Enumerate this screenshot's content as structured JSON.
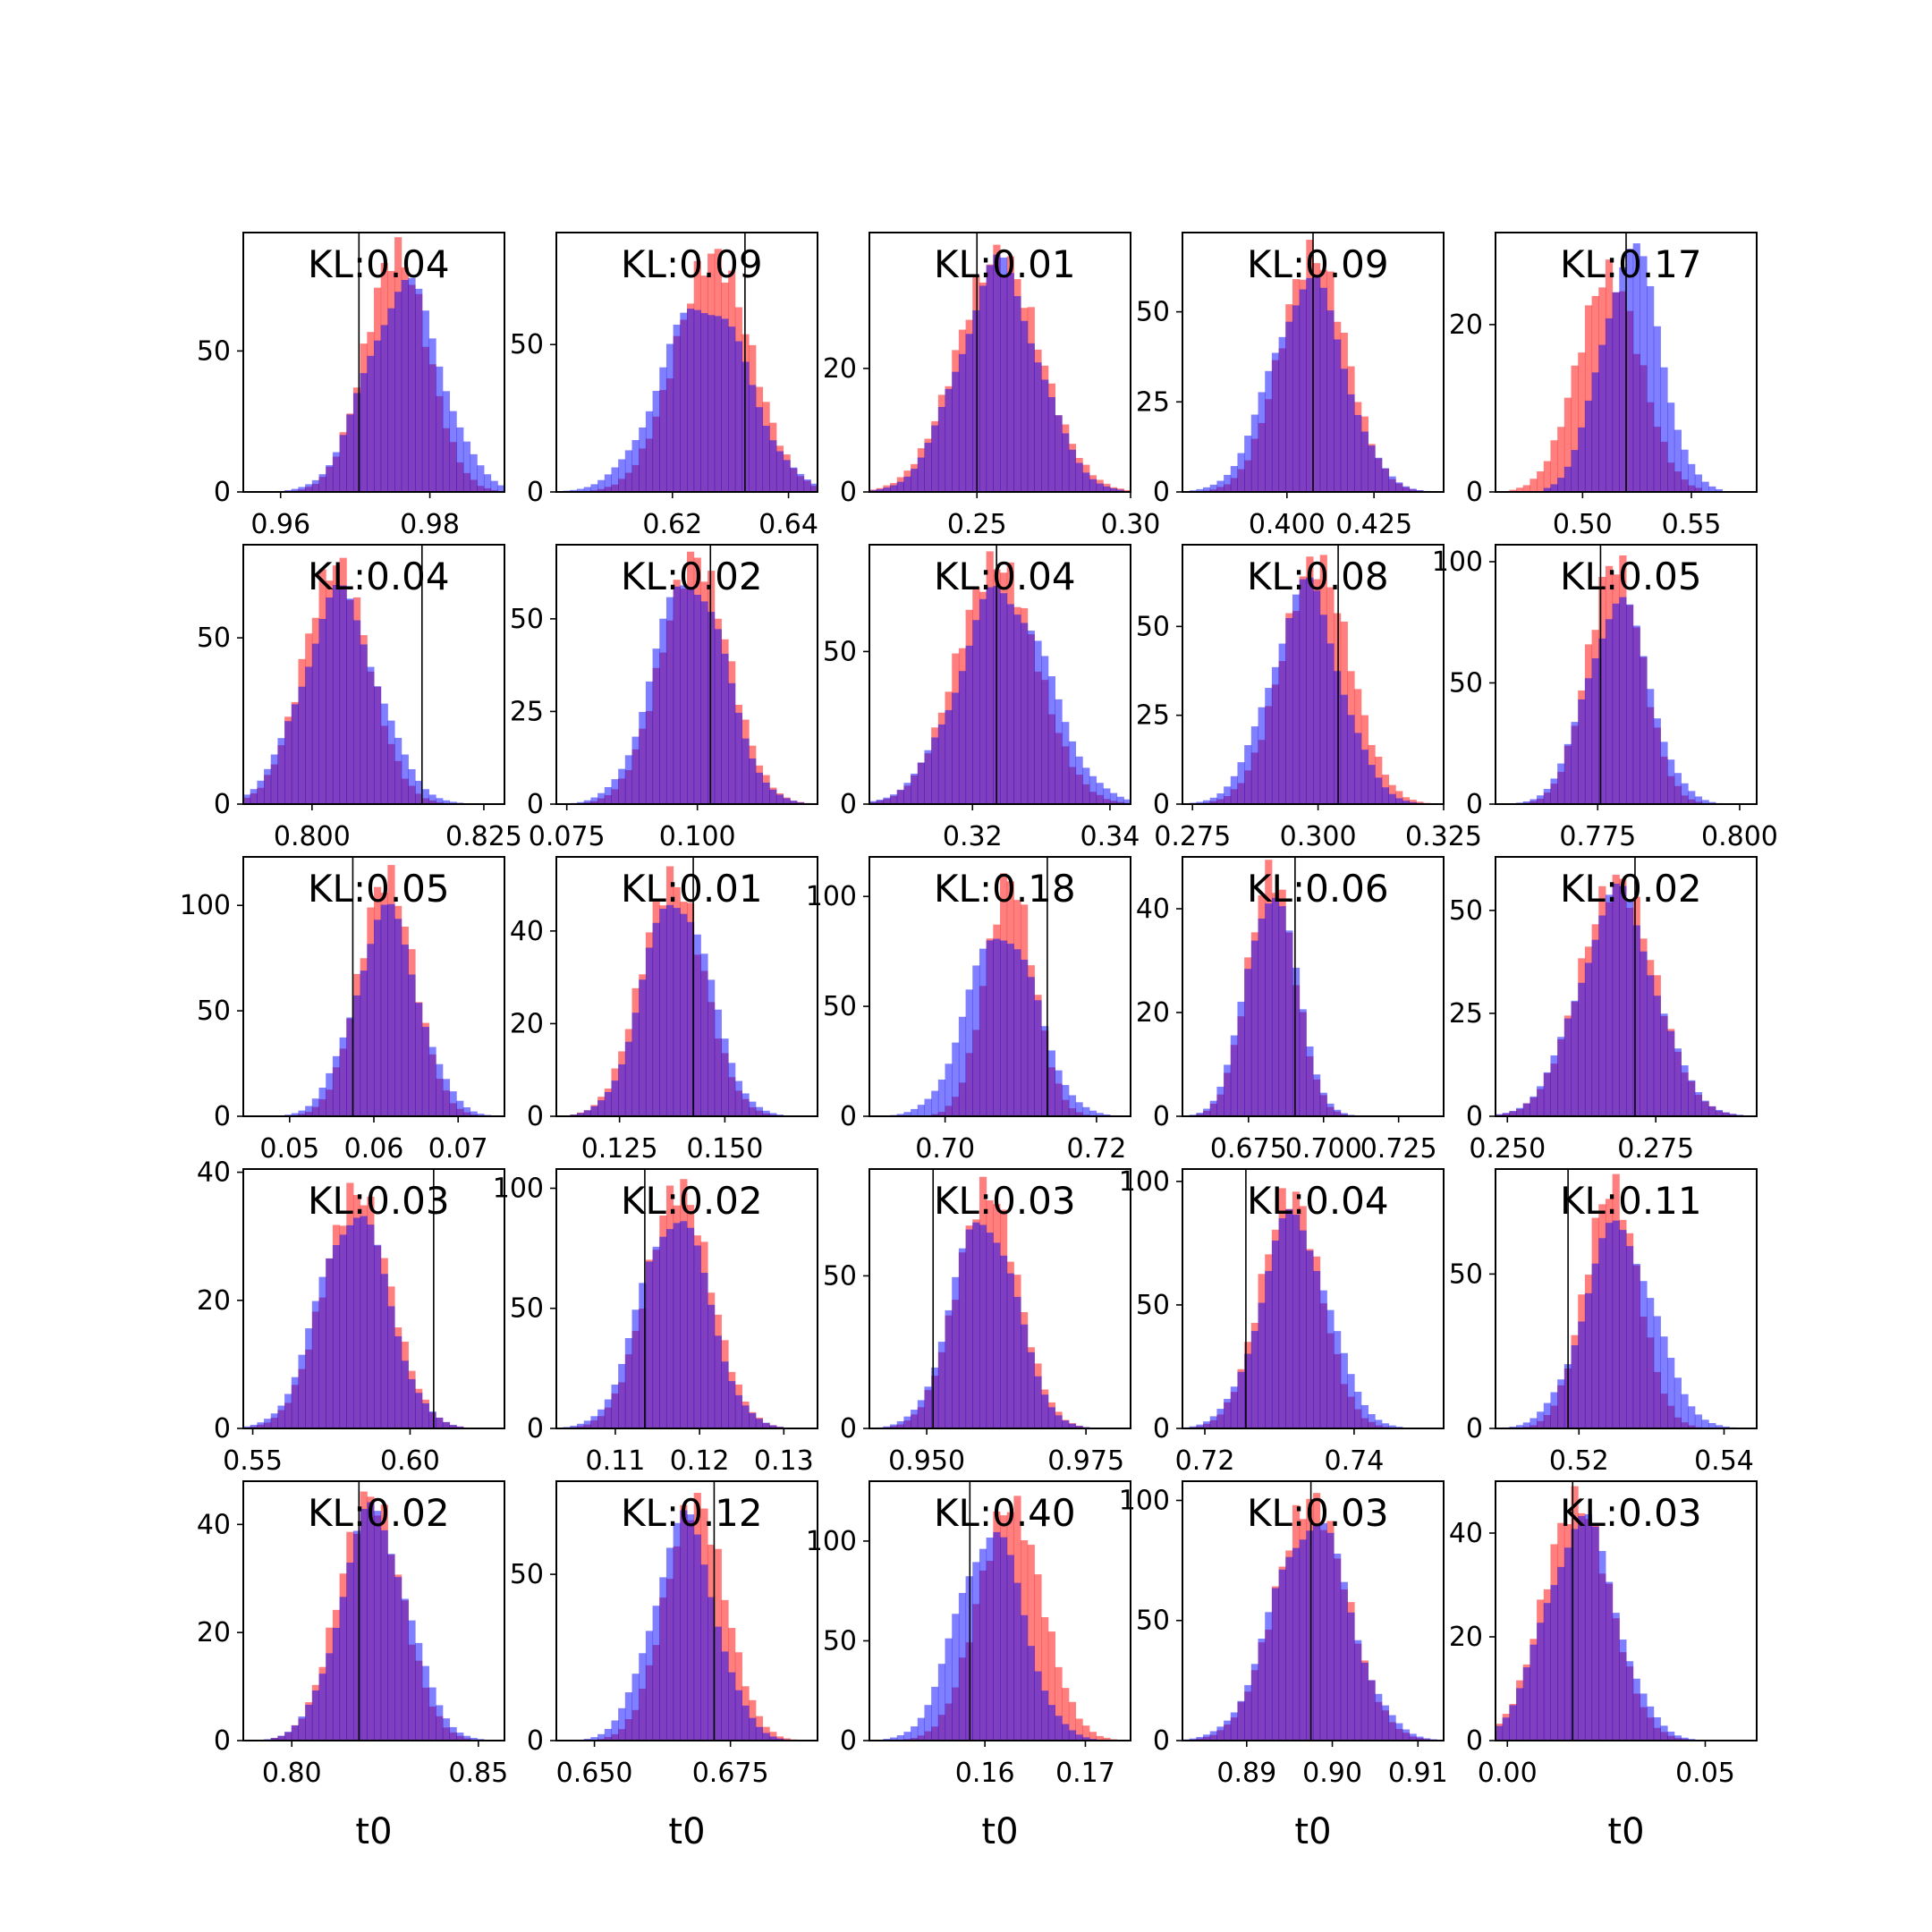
{
  "figure": {
    "colors": {
      "series_a": "#ff0000",
      "series_b": "#0000ff",
      "overlap_appearance": "#7f3fbf",
      "truth_line": "#000000"
    },
    "alpha": 0.5
  },
  "chart_data": [
    {
      "type": "bar",
      "kl_label": "KL:0.04",
      "xlabel": "",
      "xticks": [
        0.96,
        0.98
      ],
      "xtick_labels": [
        "0.96",
        "0.98"
      ],
      "yticks": [
        0,
        50
      ],
      "ytick_labels": [
        "0",
        "50"
      ],
      "xlim": [
        0.955,
        0.99
      ],
      "ylim": [
        0,
        92
      ],
      "truth": 0.9705,
      "series": [
        {
          "name": "",
          "mean": 0.9755,
          "sd": 0.0042,
          "peak": 85
        },
        {
          "name": "",
          "mean": 0.9765,
          "sd": 0.005,
          "peak": 73
        }
      ]
    },
    {
      "type": "bar",
      "kl_label": "KL:0.09",
      "xlabel": "",
      "xticks": [
        0.62,
        0.64
      ],
      "xtick_labels": [
        "0.62",
        "0.64"
      ],
      "yticks": [
        0,
        50
      ],
      "ytick_labels": [
        "0",
        "50"
      ],
      "xlim": [
        0.6,
        0.645
      ],
      "ylim": [
        0,
        88
      ],
      "truth": 0.6325,
      "series": [
        {
          "name": "",
          "mean": 0.627,
          "sd": 0.0065,
          "peak": 80
        },
        {
          "name": "",
          "mean": 0.6255,
          "sd": 0.0075,
          "peak": 65
        }
      ]
    },
    {
      "type": "bar",
      "kl_label": "KL:0.01",
      "xlabel": "",
      "xticks": [
        0.25,
        0.3
      ],
      "xtick_labels": [
        "0.25",
        "0.30"
      ],
      "yticks": [
        0,
        20
      ],
      "ytick_labels": [
        "0",
        "20"
      ],
      "xlim": [
        0.215,
        0.3
      ],
      "ylim": [
        0,
        42
      ],
      "truth": 0.25,
      "series": [
        {
          "name": "",
          "mean": 0.257,
          "sd": 0.0135,
          "peak": 38
        },
        {
          "name": "",
          "mean": 0.257,
          "sd": 0.013,
          "peak": 36
        }
      ]
    },
    {
      "type": "bar",
      "kl_label": "KL:0.09",
      "xlabel": "",
      "xticks": [
        0.4,
        0.425
      ],
      "xtick_labels": [
        "0.400",
        "0.425"
      ],
      "yticks": [
        0,
        25,
        50
      ],
      "ytick_labels": [
        "0",
        "25",
        "50"
      ],
      "xlim": [
        0.37,
        0.445
      ],
      "ylim": [
        0,
        72
      ],
      "truth": 0.4075,
      "series": [
        {
          "name": "",
          "mean": 0.4075,
          "sd": 0.0095,
          "peak": 66
        },
        {
          "name": "",
          "mean": 0.406,
          "sd": 0.0105,
          "peak": 58
        }
      ]
    },
    {
      "type": "bar",
      "kl_label": "KL:0.17",
      "xlabel": "",
      "xticks": [
        0.5,
        0.55
      ],
      "xtick_labels": [
        "0.50",
        "0.55"
      ],
      "yticks": [
        0,
        20
      ],
      "ytick_labels": [
        "0",
        "20"
      ],
      "xlim": [
        0.46,
        0.58
      ],
      "ylim": [
        0,
        31
      ],
      "truth": 0.52,
      "series": [
        {
          "name": "",
          "mean": 0.512,
          "sd": 0.0145,
          "peak": 26
        },
        {
          "name": "",
          "mean": 0.522,
          "sd": 0.0135,
          "peak": 29
        }
      ]
    },
    {
      "type": "bar",
      "kl_label": "KL:0.04",
      "xlabel": "",
      "xticks": [
        0.8,
        0.825
      ],
      "xtick_labels": [
        "0.800",
        "0.825"
      ],
      "yticks": [
        0,
        50
      ],
      "ytick_labels": [
        "0",
        "50"
      ],
      "xlim": [
        0.79,
        0.828
      ],
      "ylim": [
        0,
        78
      ],
      "truth": 0.816,
      "series": [
        {
          "name": "",
          "mean": 0.8035,
          "sd": 0.0048,
          "peak": 72
        },
        {
          "name": "",
          "mean": 0.804,
          "sd": 0.0055,
          "peak": 62
        }
      ]
    },
    {
      "type": "bar",
      "kl_label": "KL:0.02",
      "xlabel": "",
      "xticks": [
        0.075,
        0.1
      ],
      "xtick_labels": [
        "0.075",
        "0.100"
      ],
      "yticks": [
        0,
        25,
        50
      ],
      "ytick_labels": [
        "0",
        "25",
        "50"
      ],
      "xlim": [
        0.073,
        0.123
      ],
      "ylim": [
        0,
        70
      ],
      "truth": 0.1025,
      "series": [
        {
          "name": "",
          "mean": 0.0995,
          "sd": 0.0065,
          "peak": 66
        },
        {
          "name": "",
          "mean": 0.0985,
          "sd": 0.0068,
          "peak": 62
        }
      ]
    },
    {
      "type": "bar",
      "kl_label": "KL:0.04",
      "xlabel": "",
      "xticks": [
        0.32,
        0.34
      ],
      "xtick_labels": [
        "0.32",
        "0.34"
      ],
      "yticks": [
        0,
        50
      ],
      "ytick_labels": [
        "0",
        "50"
      ],
      "xlim": [
        0.305,
        0.343
      ],
      "ylim": [
        0,
        85
      ],
      "truth": 0.3235,
      "series": [
        {
          "name": "",
          "mean": 0.3235,
          "sd": 0.0058,
          "peak": 79
        },
        {
          "name": "",
          "mean": 0.3245,
          "sd": 0.0065,
          "peak": 70
        }
      ]
    },
    {
      "type": "bar",
      "kl_label": "KL:0.08",
      "xlabel": "",
      "xticks": [
        0.275,
        0.3,
        0.325
      ],
      "xtick_labels": [
        "0.275",
        "0.300",
        "0.325"
      ],
      "yticks": [
        0,
        25,
        50
      ],
      "ytick_labels": [
        "0",
        "25",
        "50"
      ],
      "xlim": [
        0.273,
        0.325
      ],
      "ylim": [
        0,
        73
      ],
      "truth": 0.304,
      "series": [
        {
          "name": "",
          "mean": 0.2995,
          "sd": 0.0068,
          "peak": 68
        },
        {
          "name": "",
          "mean": 0.2975,
          "sd": 0.007,
          "peak": 60
        }
      ]
    },
    {
      "type": "bar",
      "kl_label": "KL:0.05",
      "xlabel": "",
      "xticks": [
        0.775,
        0.8
      ],
      "xtick_labels": [
        "0.775",
        "0.800"
      ],
      "yticks": [
        0,
        50,
        100
      ],
      "ytick_labels": [
        "0",
        "50",
        "100"
      ],
      "xlim": [
        0.757,
        0.803
      ],
      "ylim": [
        0,
        107
      ],
      "truth": 0.7755,
      "series": [
        {
          "name": "",
          "mean": 0.778,
          "sd": 0.0048,
          "peak": 100
        },
        {
          "name": "",
          "mean": 0.7785,
          "sd": 0.0055,
          "peak": 83
        }
      ]
    },
    {
      "type": "bar",
      "kl_label": "KL:0.05",
      "xlabel": "",
      "xticks": [
        0.05,
        0.06,
        0.07
      ],
      "xtick_labels": [
        "0.05",
        "0.06",
        "0.07"
      ],
      "yticks": [
        0,
        50,
        100
      ],
      "ytick_labels": [
        "0",
        "50",
        "100"
      ],
      "xlim": [
        0.0445,
        0.0755
      ],
      "ylim": [
        0,
        123
      ],
      "truth": 0.0575,
      "series": [
        {
          "name": "",
          "mean": 0.0615,
          "sd": 0.0033,
          "peak": 113
        },
        {
          "name": "",
          "mean": 0.0615,
          "sd": 0.0038,
          "peak": 95
        }
      ]
    },
    {
      "type": "bar",
      "kl_label": "KL:0.01",
      "xlabel": "",
      "xticks": [
        0.125,
        0.15
      ],
      "xtick_labels": [
        "0.125",
        "0.150"
      ],
      "yticks": [
        0,
        20,
        40
      ],
      "ytick_labels": [
        "0",
        "20",
        "40"
      ],
      "xlim": [
        0.11,
        0.172
      ],
      "ylim": [
        0,
        56
      ],
      "truth": 0.1425,
      "series": [
        {
          "name": "",
          "mean": 0.1375,
          "sd": 0.0075,
          "peak": 51
        },
        {
          "name": "",
          "mean": 0.1385,
          "sd": 0.0078,
          "peak": 48
        }
      ]
    },
    {
      "type": "bar",
      "kl_label": "KL:0.18",
      "xlabel": "",
      "xticks": [
        0.7,
        0.72
      ],
      "xtick_labels": [
        "0.70",
        "0.72"
      ],
      "yticks": [
        0,
        50,
        100
      ],
      "ytick_labels": [
        "0",
        "50",
        "100"
      ],
      "xlim": [
        0.69,
        0.7245
      ],
      "ylim": [
        0,
        118
      ],
      "truth": 0.7135,
      "series": [
        {
          "name": "",
          "mean": 0.7085,
          "sd": 0.0032,
          "peak": 108
        },
        {
          "name": "",
          "mean": 0.7075,
          "sd": 0.0045,
          "peak": 86
        }
      ]
    },
    {
      "type": "bar",
      "kl_label": "KL:0.06",
      "xlabel": "",
      "xticks": [
        0.675,
        0.7,
        0.725
      ],
      "xtick_labels": [
        "0.675",
        "0.700",
        "0.725"
      ],
      "yticks": [
        0,
        20,
        40
      ],
      "ytick_labels": [
        "0",
        "20",
        "40"
      ],
      "xlim": [
        0.653,
        0.74
      ],
      "ylim": [
        0,
        50
      ],
      "truth": 0.6905,
      "series": [
        {
          "name": "",
          "mean": 0.6825,
          "sd": 0.0078,
          "peak": 47
        },
        {
          "name": "",
          "mean": 0.6825,
          "sd": 0.0083,
          "peak": 44
        }
      ]
    },
    {
      "type": "bar",
      "kl_label": "KL:0.02",
      "xlabel": "",
      "xticks": [
        0.25,
        0.275
      ],
      "xtick_labels": [
        "0.250",
        "0.275"
      ],
      "yticks": [
        0,
        25,
        50
      ],
      "ytick_labels": [
        "0",
        "25",
        "50"
      ],
      "xlim": [
        0.248,
        0.292
      ],
      "ylim": [
        0,
        63
      ],
      "truth": 0.2715,
      "series": [
        {
          "name": "",
          "mean": 0.2685,
          "sd": 0.0063,
          "peak": 57
        },
        {
          "name": "",
          "mean": 0.2685,
          "sd": 0.0065,
          "peak": 53
        }
      ]
    },
    {
      "type": "bar",
      "kl_label": "KL:0.03",
      "xlabel": "",
      "xticks": [
        0.55,
        0.6
      ],
      "xtick_labels": [
        "0.55",
        "0.60"
      ],
      "yticks": [
        0,
        20,
        40
      ],
      "ytick_labels": [
        "0",
        "20",
        "40"
      ],
      "xlim": [
        0.547,
        0.63
      ],
      "ylim": [
        0,
        40.5
      ],
      "truth": 0.6075,
      "series": [
        {
          "name": "",
          "mean": 0.583,
          "sd": 0.0105,
          "peak": 37
        },
        {
          "name": "",
          "mean": 0.582,
          "sd": 0.011,
          "peak": 34
        }
      ]
    },
    {
      "type": "bar",
      "kl_label": "KL:0.02",
      "xlabel": "",
      "xticks": [
        0.11,
        0.12,
        0.13
      ],
      "xtick_labels": [
        "0.11",
        "0.12",
        "0.13"
      ],
      "yticks": [
        0,
        50,
        100
      ],
      "ytick_labels": [
        "0",
        "50",
        "100"
      ],
      "xlim": [
        0.103,
        0.134
      ],
      "ylim": [
        0,
        108
      ],
      "truth": 0.1135,
      "series": [
        {
          "name": "",
          "mean": 0.1175,
          "sd": 0.0038,
          "peak": 100
        },
        {
          "name": "",
          "mean": 0.117,
          "sd": 0.004,
          "peak": 90
        }
      ]
    },
    {
      "type": "bar",
      "kl_label": "KL:0.03",
      "xlabel": "",
      "xticks": [
        0.95,
        0.975
      ],
      "xtick_labels": [
        "0.950",
        "0.975"
      ],
      "yticks": [
        0,
        50
      ],
      "ytick_labels": [
        "0",
        "50"
      ],
      "xlim": [
        0.941,
        0.982
      ],
      "ylim": [
        0,
        85
      ],
      "truth": 0.951,
      "series": [
        {
          "name": "",
          "mean": 0.9595,
          "sd": 0.0048,
          "peak": 78
        },
        {
          "name": "",
          "mean": 0.959,
          "sd": 0.005,
          "peak": 70
        }
      ]
    },
    {
      "type": "bar",
      "kl_label": "KL:0.04",
      "xlabel": "",
      "xticks": [
        0.72,
        0.74
      ],
      "xtick_labels": [
        "0.72",
        "0.74"
      ],
      "yticks": [
        0,
        50,
        100
      ],
      "ytick_labels": [
        "0",
        "50",
        "100"
      ],
      "xlim": [
        0.717,
        0.752
      ],
      "ylim": [
        0,
        105
      ],
      "truth": 0.7255,
      "series": [
        {
          "name": "",
          "mean": 0.7315,
          "sd": 0.004,
          "peak": 95
        },
        {
          "name": "",
          "mean": 0.732,
          "sd": 0.0045,
          "peak": 85
        }
      ]
    },
    {
      "type": "bar",
      "kl_label": "KL:0.11",
      "xlabel": "",
      "xticks": [
        0.52,
        0.54
      ],
      "xtick_labels": [
        "0.52",
        "0.54"
      ],
      "yticks": [
        0,
        50
      ],
      "ytick_labels": [
        "0",
        "50"
      ],
      "xlim": [
        0.5085,
        0.5445
      ],
      "ylim": [
        0,
        84
      ],
      "truth": 0.5185,
      "series": [
        {
          "name": "",
          "mean": 0.5245,
          "sd": 0.0037,
          "peak": 78
        },
        {
          "name": "",
          "mean": 0.5255,
          "sd": 0.0048,
          "peak": 65
        }
      ]
    },
    {
      "type": "bar",
      "kl_label": "KL:0.02",
      "xlabel": "t0",
      "xticks": [
        0.8,
        0.85
      ],
      "xtick_labels": [
        "0.80",
        "0.85"
      ],
      "yticks": [
        0,
        20,
        40
      ],
      "ytick_labels": [
        "0",
        "20",
        "40"
      ],
      "xlim": [
        0.787,
        0.857
      ],
      "ylim": [
        0,
        48
      ],
      "truth": 0.818,
      "series": [
        {
          "name": "",
          "mean": 0.821,
          "sd": 0.0085,
          "peak": 45
        },
        {
          "name": "",
          "mean": 0.822,
          "sd": 0.009,
          "peak": 42
        }
      ]
    },
    {
      "type": "bar",
      "kl_label": "KL:0.12",
      "xlabel": "t0",
      "xticks": [
        0.65,
        0.675
      ],
      "xtick_labels": [
        "0.650",
        "0.675"
      ],
      "yticks": [
        0,
        50
      ],
      "ytick_labels": [
        "0",
        "50"
      ],
      "xlim": [
        0.643,
        0.691
      ],
      "ylim": [
        0,
        78
      ],
      "truth": 0.672,
      "series": [
        {
          "name": "",
          "mean": 0.6685,
          "sd": 0.0055,
          "peak": 72
        },
        {
          "name": "",
          "mean": 0.6665,
          "sd": 0.0058,
          "peak": 65
        }
      ]
    },
    {
      "type": "bar",
      "kl_label": "KL:0.40",
      "xlabel": "t0",
      "xticks": [
        0.16,
        0.17
      ],
      "xtick_labels": [
        "0.16",
        "0.17"
      ],
      "yticks": [
        0,
        50,
        100
      ],
      "ytick_labels": [
        "0",
        "50",
        "100"
      ],
      "xlim": [
        0.1485,
        0.1745
      ],
      "ylim": [
        0,
        130
      ],
      "truth": 0.1585,
      "series": [
        {
          "name": "",
          "mean": 0.1625,
          "sd": 0.0032,
          "peak": 118
        },
        {
          "name": "",
          "mean": 0.1605,
          "sd": 0.0033,
          "peak": 105
        }
      ]
    },
    {
      "type": "bar",
      "kl_label": "KL:0.03",
      "xlabel": "t0",
      "xticks": [
        0.89,
        0.9,
        0.91
      ],
      "xtick_labels": [
        "0.89",
        "0.90",
        "0.91"
      ],
      "yticks": [
        0,
        50,
        100
      ],
      "ytick_labels": [
        "0",
        "50",
        "100"
      ],
      "xlim": [
        0.8825,
        0.913
      ],
      "ylim": [
        0,
        108
      ],
      "truth": 0.8975,
      "series": [
        {
          "name": "",
          "mean": 0.8975,
          "sd": 0.0042,
          "peak": 100
        },
        {
          "name": "",
          "mean": 0.8975,
          "sd": 0.0045,
          "peak": 92
        }
      ]
    },
    {
      "type": "bar",
      "kl_label": "KL:0.03",
      "xlabel": "t0",
      "xticks": [
        0,
        0.05
      ],
      "xtick_labels": [
        "0.00",
        "0.05"
      ],
      "yticks": [
        0,
        20,
        40
      ],
      "ytick_labels": [
        "0",
        "20",
        "40"
      ],
      "xlim": [
        -0.003,
        0.063
      ],
      "ylim": [
        0,
        50
      ],
      "truth": 0.0165,
      "series": [
        {
          "name": "",
          "mean": 0.0175,
          "sd": 0.0085,
          "peak": 46
        },
        {
          "name": "",
          "mean": 0.0185,
          "sd": 0.009,
          "peak": 42
        }
      ]
    }
  ]
}
